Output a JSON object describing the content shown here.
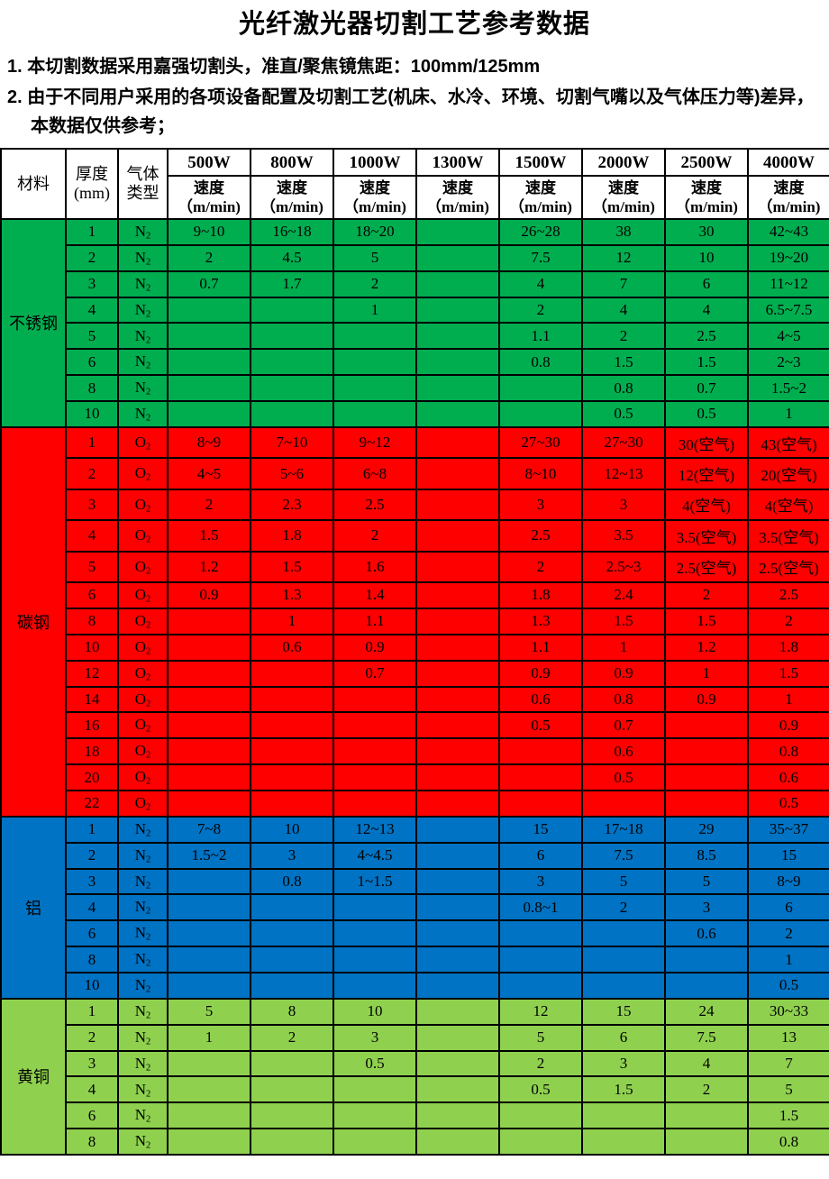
{
  "title": "光纤激光器切割工艺参考数据",
  "notes": [
    "1. 本切割数据采用嘉强切割头，准直/聚焦镜焦距：100mm/125mm",
    "2. 由于不同用户采用的各项设备配置及切割工艺(机床、水冷、环境、切割气嘴以及气体压力等)差异，本数据仅供参考；"
  ],
  "table": {
    "header": {
      "material": "材料",
      "thickness": [
        "厚度",
        "(mm)"
      ],
      "gas_type": [
        "气体",
        "类型"
      ],
      "powers": [
        "500W",
        "800W",
        "1000W",
        "1300W",
        "1500W",
        "2000W",
        "2500W",
        "4000W"
      ],
      "speed": [
        "速度",
        "（m/min)"
      ]
    },
    "sections": [
      {
        "material": "不锈钢",
        "color": "#00AE50",
        "rows": [
          {
            "t": "1",
            "gas": "N2",
            "v": [
              "9~10",
              "16~18",
              "18~20",
              "",
              "26~28",
              "38",
              "30",
              "42~43"
            ]
          },
          {
            "t": "2",
            "gas": "N2",
            "v": [
              "2",
              "4.5",
              "5",
              "",
              "7.5",
              "12",
              "10",
              "19~20"
            ]
          },
          {
            "t": "3",
            "gas": "N2",
            "v": [
              "0.7",
              "1.7",
              "2",
              "",
              "4",
              "7",
              "6",
              "11~12"
            ]
          },
          {
            "t": "4",
            "gas": "N2",
            "v": [
              "",
              "",
              "1",
              "",
              "2",
              "4",
              "4",
              "6.5~7.5"
            ]
          },
          {
            "t": "5",
            "gas": "N2",
            "v": [
              "",
              "",
              "",
              "",
              "1.1",
              "2",
              "2.5",
              "4~5"
            ]
          },
          {
            "t": "6",
            "gas": "N2",
            "v": [
              "",
              "",
              "",
              "",
              "0.8",
              "1.5",
              "1.5",
              "2~3"
            ]
          },
          {
            "t": "8",
            "gas": "N2",
            "v": [
              "",
              "",
              "",
              "",
              "",
              "0.8",
              "0.7",
              "1.5~2"
            ]
          },
          {
            "t": "10",
            "gas": "N2",
            "v": [
              "",
              "",
              "",
              "",
              "",
              "0.5",
              "0.5",
              "1"
            ]
          }
        ]
      },
      {
        "material": "碳钢",
        "color": "#FF0000",
        "rows": [
          {
            "t": "1",
            "gas": "O2",
            "v": [
              "8~9",
              "7~10",
              "9~12",
              "",
              "27~30",
              "27~30",
              "30(空气)",
              "43(空气)"
            ]
          },
          {
            "t": "2",
            "gas": "O2",
            "v": [
              "4~5",
              "5~6",
              "6~8",
              "",
              "8~10",
              "12~13",
              "12(空气)",
              "20(空气)"
            ]
          },
          {
            "t": "3",
            "gas": "O2",
            "v": [
              "2",
              "2.3",
              "2.5",
              "",
              "3",
              "3",
              "4(空气)",
              "4(空气)"
            ]
          },
          {
            "t": "4",
            "gas": "O2",
            "v": [
              "1.5",
              "1.8",
              "2",
              "",
              "2.5",
              "3.5",
              "3.5(空气)",
              "3.5(空气)"
            ]
          },
          {
            "t": "5",
            "gas": "O2",
            "v": [
              "1.2",
              "1.5",
              "1.6",
              "",
              "2",
              "2.5~3",
              "2.5(空气)",
              "2.5(空气)"
            ]
          },
          {
            "t": "6",
            "gas": "O2",
            "v": [
              "0.9",
              "1.3",
              "1.4",
              "",
              "1.8",
              "2.4",
              "2",
              "2.5"
            ]
          },
          {
            "t": "8",
            "gas": "O2",
            "v": [
              "",
              "1",
              "1.1",
              "",
              "1.3",
              "1.5",
              "1.5",
              "2"
            ]
          },
          {
            "t": "10",
            "gas": "O2",
            "v": [
              "",
              "0.6",
              "0.9",
              "",
              "1.1",
              "1",
              "1.2",
              "1.8"
            ]
          },
          {
            "t": "12",
            "gas": "O2",
            "v": [
              "",
              "",
              "0.7",
              "",
              "0.9",
              "0.9",
              "1",
              "1.5"
            ]
          },
          {
            "t": "14",
            "gas": "O2",
            "v": [
              "",
              "",
              "",
              "",
              "0.6",
              "0.8",
              "0.9",
              "1"
            ]
          },
          {
            "t": "16",
            "gas": "O2",
            "v": [
              "",
              "",
              "",
              "",
              "0.5",
              "0.7",
              "",
              "0.9"
            ]
          },
          {
            "t": "18",
            "gas": "O2",
            "v": [
              "",
              "",
              "",
              "",
              "",
              "0.6",
              "",
              "0.8"
            ]
          },
          {
            "t": "20",
            "gas": "O2",
            "v": [
              "",
              "",
              "",
              "",
              "",
              "0.5",
              "",
              "0.6"
            ]
          },
          {
            "t": "22",
            "gas": "O2",
            "v": [
              "",
              "",
              "",
              "",
              "",
              "",
              "",
              "0.5"
            ]
          }
        ]
      },
      {
        "material": "铝",
        "color": "#0073C4",
        "rows": [
          {
            "t": "1",
            "gas": "N2",
            "v": [
              "7~8",
              "10",
              "12~13",
              "",
              "15",
              "17~18",
              "29",
              "35~37"
            ]
          },
          {
            "t": "2",
            "gas": "N2",
            "v": [
              "1.5~2",
              "3",
              "4~4.5",
              "",
              "6",
              "7.5",
              "8.5",
              "15"
            ]
          },
          {
            "t": "3",
            "gas": "N2",
            "v": [
              "",
              "0.8",
              "1~1.5",
              "",
              "3",
              "5",
              "5",
              "8~9"
            ]
          },
          {
            "t": "4",
            "gas": "N2",
            "v": [
              "",
              "",
              "",
              "",
              "0.8~1",
              "2",
              "3",
              "6"
            ]
          },
          {
            "t": "6",
            "gas": "N2",
            "v": [
              "",
              "",
              "",
              "",
              "",
              "",
              "0.6",
              "2"
            ]
          },
          {
            "t": "8",
            "gas": "N2",
            "v": [
              "",
              "",
              "",
              "",
              "",
              "",
              "",
              "1"
            ]
          },
          {
            "t": "10",
            "gas": "N2",
            "v": [
              "",
              "",
              "",
              "",
              "",
              "",
              "",
              "0.5"
            ]
          }
        ]
      },
      {
        "material": "黄铜",
        "color": "#8FD14F",
        "rows": [
          {
            "t": "1",
            "gas": "N2",
            "v": [
              "5",
              "8",
              "10",
              "",
              "12",
              "15",
              "24",
              "30~33"
            ]
          },
          {
            "t": "2",
            "gas": "N2",
            "v": [
              "1",
              "2",
              "3",
              "",
              "5",
              "6",
              "7.5",
              "13"
            ]
          },
          {
            "t": "3",
            "gas": "N2",
            "v": [
              "",
              "",
              "0.5",
              "",
              "2",
              "3",
              "4",
              "7"
            ]
          },
          {
            "t": "4",
            "gas": "N2",
            "v": [
              "",
              "",
              "",
              "",
              "0.5",
              "1.5",
              "2",
              "5"
            ]
          },
          {
            "t": "6",
            "gas": "N2",
            "v": [
              "",
              "",
              "",
              "",
              "",
              "",
              "",
              "1.5"
            ]
          },
          {
            "t": "8",
            "gas": "N2",
            "v": [
              "",
              "",
              "",
              "",
              "",
              "",
              "",
              "0.8"
            ]
          }
        ]
      }
    ]
  }
}
